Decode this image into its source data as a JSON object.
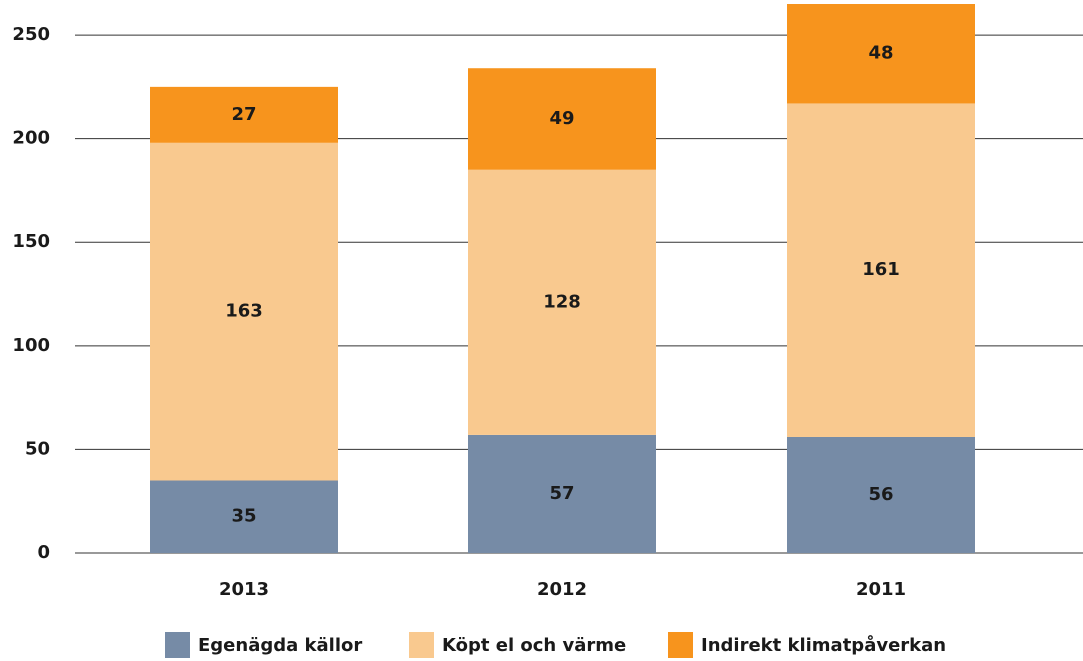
{
  "chart_data": {
    "type": "stacked_bar",
    "categories": [
      "2013",
      "2012",
      "2011"
    ],
    "series": [
      {
        "name": "Egenägda källor",
        "color": "#768ba6",
        "values": [
          35,
          57,
          56
        ]
      },
      {
        "name": "Köpt el och värme",
        "color": "#f9c98f",
        "values": [
          163,
          128,
          161
        ]
      },
      {
        "name": "Indirekt klimatpåverkan",
        "color": "#f7941d",
        "values": [
          27,
          49,
          48
        ]
      }
    ],
    "ylim": [
      0,
      265
    ],
    "yticks": [
      0,
      50,
      100,
      150,
      200,
      250
    ],
    "grid": true,
    "legend": "bottom"
  }
}
